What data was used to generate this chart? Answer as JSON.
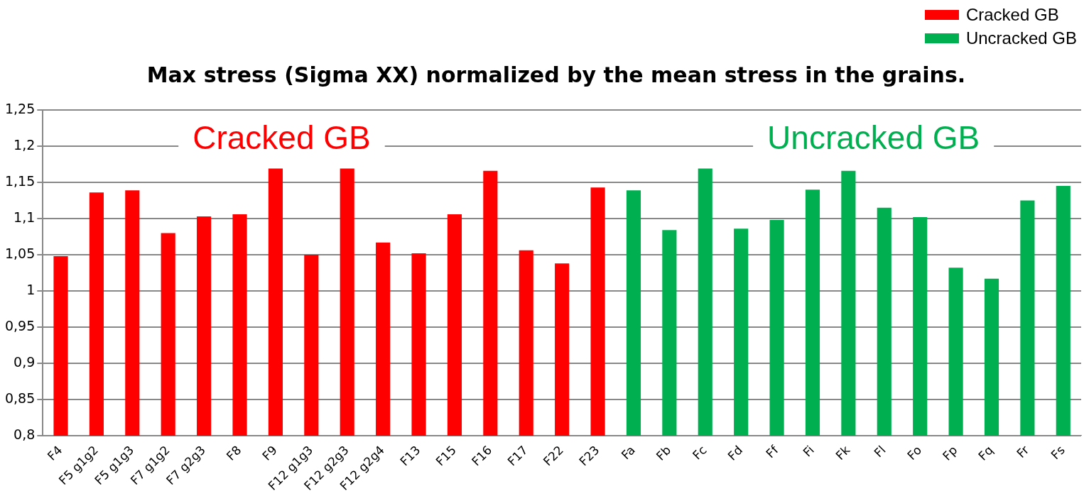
{
  "chart_data": {
    "type": "bar",
    "title": "Max stress (Sigma XX) normalized by the mean stress in the grains.",
    "categories": [
      "F4",
      "F5 g1g2",
      "F5 g1g3",
      "F7 g1g2",
      "F7 g2g3",
      "F8",
      "F9",
      "F12 g1g3",
      "F12 g2g3",
      "F12 g2g4",
      "F13",
      "F15",
      "F16",
      "F17",
      "F22",
      "F23",
      "Fa",
      "Fb",
      "Fc",
      "Fd",
      "Ff",
      "Fi",
      "Fk",
      "Fl",
      "Fo",
      "Fp",
      "Fq",
      "Fr",
      "Fs"
    ],
    "series": [
      {
        "name": "Cracked GB",
        "color": "#ff0000",
        "values": [
          1.048,
          1.136,
          1.139,
          1.08,
          1.103,
          1.106,
          1.169,
          1.05,
          1.169,
          1.067,
          1.052,
          1.106,
          1.166,
          1.056,
          1.038,
          1.143,
          null,
          null,
          null,
          null,
          null,
          null,
          null,
          null,
          null,
          null,
          null,
          null,
          null
        ]
      },
      {
        "name": "Uncracked GB",
        "color": "#00b050",
        "values": [
          null,
          null,
          null,
          null,
          null,
          null,
          null,
          null,
          null,
          null,
          null,
          null,
          null,
          null,
          null,
          null,
          1.139,
          1.084,
          1.169,
          1.086,
          1.098,
          1.14,
          1.166,
          1.115,
          1.102,
          1.032,
          1.017,
          1.125,
          1.145
        ]
      }
    ],
    "ylim": [
      0.8,
      1.25
    ],
    "yticks": [
      {
        "value": 0.8,
        "label": "0,8"
      },
      {
        "value": 0.85,
        "label": "0,85"
      },
      {
        "value": 0.9,
        "label": "0,9"
      },
      {
        "value": 0.95,
        "label": "0,95"
      },
      {
        "value": 1,
        "label": "1"
      },
      {
        "value": 1.05,
        "label": "1,05"
      },
      {
        "value": 1.1,
        "label": "1,1"
      },
      {
        "value": 1.15,
        "label": "1,15"
      },
      {
        "value": 1.2,
        "label": "1,2"
      },
      {
        "value": 1.25,
        "label": "1,25"
      }
    ],
    "annotations": [
      "Cracked GB",
      "Uncracked GB"
    ],
    "grid": "y",
    "legend": "top right"
  }
}
